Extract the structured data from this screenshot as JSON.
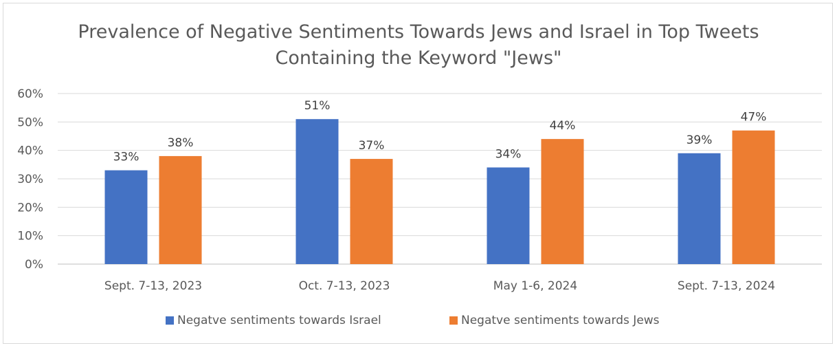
{
  "chart_data": {
    "type": "bar",
    "title_lines": [
      "Prevalence of Negative Sentiments Towards Jews and Israel in Top Tweets",
      "Containing the Keyword \"Jews\""
    ],
    "categories": [
      "Sept. 7-13, 2023",
      "Oct. 7-13, 2023",
      "May 1-6, 2024",
      "Sept. 7-13, 2024"
    ],
    "series": [
      {
        "name": "Negatve sentiments towards Israel",
        "color": "#4472c4",
        "values": [
          0.33,
          0.51,
          0.34,
          0.39
        ],
        "data_labels": [
          "33%",
          "51%",
          "34%",
          "39%"
        ]
      },
      {
        "name": "Negatve sentiments towards Jews",
        "color": "#ed7d31",
        "values": [
          0.38,
          0.37,
          0.44,
          0.47
        ],
        "data_labels": [
          "38%",
          "37%",
          "44%",
          "47%"
        ]
      }
    ],
    "y_ticks": [
      "0%",
      "10%",
      "20%",
      "30%",
      "40%",
      "50%",
      "60%"
    ],
    "ylim": [
      0,
      0.6
    ],
    "grid": true,
    "legend_position": "bottom"
  }
}
